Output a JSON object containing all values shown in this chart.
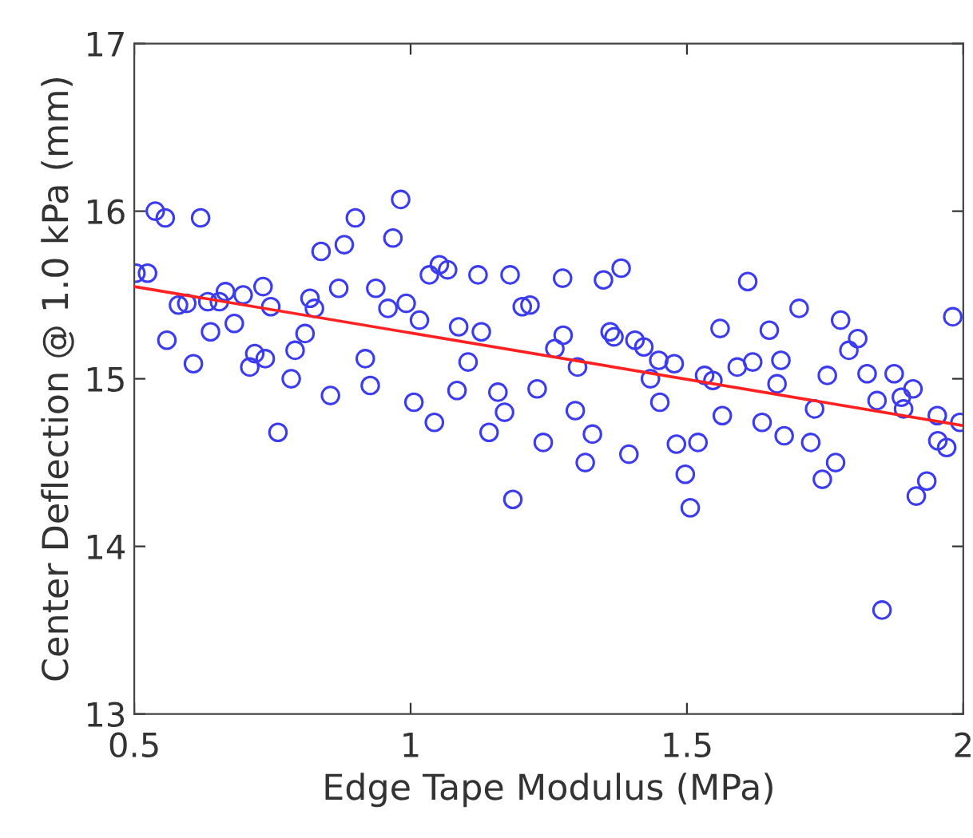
{
  "chart_data": {
    "type": "scatter",
    "xlabel": "Edge Tape Modulus (MPa)",
    "ylabel": "Center Deflection @ 1.0 kPa (mm)",
    "xlim": [
      0.5,
      2
    ],
    "ylim": [
      13,
      17
    ],
    "xticks": [
      0.5,
      1,
      {
        "value": 1.5,
        "label": "1.5"
      },
      2
    ],
    "yticks": [
      13,
      14,
      15,
      16,
      17
    ],
    "grid": false,
    "legend": false,
    "marker": "circle",
    "series": [
      {
        "color": "#3b3bf0",
        "x": [
          0.503,
          0.524,
          0.538,
          0.556,
          0.62,
          0.559,
          0.58,
          0.595,
          0.607,
          0.633,
          0.638,
          0.654,
          0.665,
          0.681,
          0.697,
          0.709,
          0.718,
          0.733,
          0.737,
          0.747,
          0.76,
          0.784,
          0.791,
          0.809,
          0.818,
          0.826,
          0.838,
          0.855,
          0.87,
          0.88,
          0.9,
          0.918,
          0.927,
          0.937,
          0.959,
          0.968,
          0.982,
          0.992,
          1.016,
          1.006,
          1.034,
          1.052,
          1.067,
          1.043,
          1.084,
          1.087,
          1.104,
          1.122,
          1.128,
          1.142,
          1.158,
          1.17,
          1.18,
          1.185,
          1.202,
          1.216,
          1.229,
          1.24,
          1.261,
          1.275,
          1.276,
          1.298,
          1.302,
          1.316,
          1.329,
          1.349,
          1.361,
          1.368,
          1.381,
          1.395,
          1.406,
          1.422,
          1.434,
          1.449,
          1.451,
          1.477,
          1.481,
          1.497,
          1.506,
          1.52,
          1.532,
          1.547,
          1.56,
          1.564,
          1.591,
          1.61,
          1.619,
          1.636,
          1.649,
          1.663,
          1.67,
          1.676,
          1.703,
          1.724,
          1.731,
          1.745,
          1.754,
          1.769,
          1.778,
          1.793,
          1.809,
          1.826,
          1.844,
          1.853,
          1.875,
          1.888,
          1.892,
          1.909,
          1.915,
          1.934,
          1.953,
          1.954,
          1.97,
          1.981,
          1.994
        ],
        "values": [
          15.63,
          15.63,
          16.0,
          15.96,
          15.96,
          15.23,
          15.44,
          15.45,
          15.09,
          15.46,
          15.28,
          15.46,
          15.52,
          15.33,
          15.5,
          15.07,
          15.15,
          15.55,
          15.12,
          15.43,
          14.68,
          15.0,
          15.17,
          15.27,
          15.48,
          15.42,
          15.76,
          14.9,
          15.54,
          15.8,
          15.96,
          15.12,
          14.96,
          15.54,
          15.42,
          15.84,
          16.07,
          15.45,
          15.35,
          14.86,
          15.62,
          15.68,
          15.65,
          14.74,
          14.93,
          15.31,
          15.1,
          15.62,
          15.28,
          14.68,
          14.92,
          14.8,
          15.62,
          14.28,
          15.43,
          15.44,
          14.94,
          14.62,
          15.18,
          15.6,
          15.26,
          14.81,
          15.07,
          14.5,
          14.67,
          15.59,
          15.28,
          15.25,
          15.66,
          14.55,
          15.23,
          15.19,
          15.0,
          15.11,
          14.86,
          15.09,
          14.61,
          14.43,
          14.23,
          14.62,
          15.02,
          14.99,
          15.3,
          14.78,
          15.07,
          15.58,
          15.1,
          14.74,
          15.29,
          14.97,
          15.11,
          14.66,
          15.42,
          14.62,
          14.82,
          14.4,
          15.02,
          14.5,
          15.35,
          15.17,
          15.24,
          15.03,
          14.87,
          13.62,
          15.03,
          14.89,
          14.82,
          14.94,
          14.3,
          14.39,
          14.78,
          14.63,
          14.59,
          15.37,
          14.74
        ]
      },
      {
        "type": "line",
        "color": "#ff2020",
        "x": [
          0.5,
          2
        ],
        "values": [
          15.55,
          14.72
        ],
        "marker": "none",
        "line_style": "solid"
      }
    ]
  }
}
